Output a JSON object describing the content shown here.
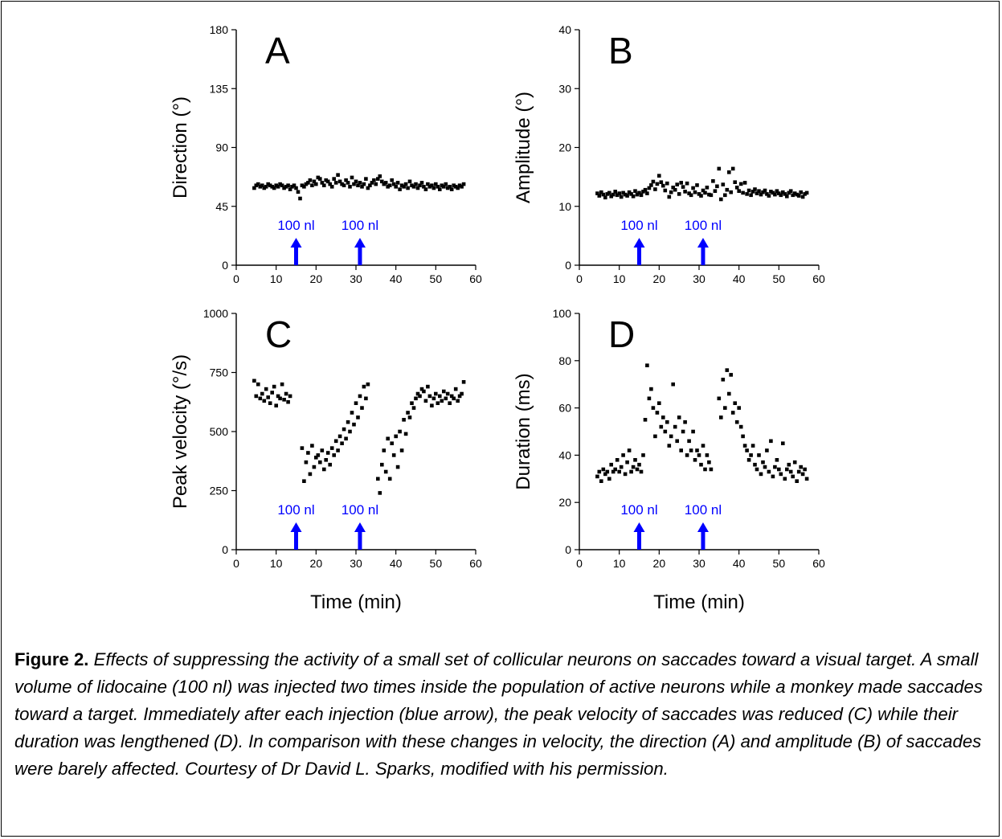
{
  "colors": {
    "data": "#000000",
    "arrow": "#0000ff",
    "axis": "#000000"
  },
  "shared_xlabel": "Time (min)",
  "caption": {
    "label": "Figure 2.",
    "text": "Effects of suppressing the activity of a small set of collicular neurons on saccades toward a visual target. A small volume of lidocaine (100 nl) was injected two times inside the population of active neurons while a monkey made saccades toward a target. Immediately after each injection (blue arrow), the peak velocity of saccades was reduced (C) while their duration was lengthened (D). In comparison with these changes in velocity, the direction (A) and amplitude (B) of saccades were barely affected. Courtesy of Dr David L. Sparks, modified with his permission."
  },
  "chart_data": [
    {
      "type": "scatter",
      "panel": "A",
      "ylabel": "Direction (°)",
      "xlim": [
        0,
        60
      ],
      "ylim": [
        0,
        180
      ],
      "xticks": [
        0,
        10,
        20,
        30,
        40,
        50,
        60
      ],
      "yticks": [
        0,
        45,
        90,
        135,
        180
      ],
      "annotations": [
        {
          "text": "100 nl",
          "x": 15,
          "kind": "arrow"
        },
        {
          "text": "100 nl",
          "x": 31,
          "kind": "arrow"
        }
      ],
      "x": [
        4.5,
        5,
        5.5,
        6,
        6.5,
        7,
        7.5,
        8,
        8.5,
        9,
        9.5,
        10,
        10.5,
        11,
        11.5,
        12,
        12.5,
        13,
        13.5,
        14,
        14.5,
        15,
        15.5,
        16,
        16.5,
        17,
        17.5,
        18,
        18.5,
        19,
        19.5,
        20,
        20.5,
        21,
        21.5,
        22,
        22.5,
        23,
        23.5,
        24,
        24.5,
        25,
        25.5,
        26,
        26.5,
        27,
        27.5,
        28,
        28.5,
        29,
        29.5,
        30,
        30.5,
        31,
        31.5,
        32,
        32.5,
        33,
        33.5,
        34,
        34.5,
        35,
        35.5,
        36,
        36.5,
        37,
        37.5,
        38,
        38.5,
        39,
        39.5,
        40,
        40.5,
        41,
        41.5,
        42,
        42.5,
        43,
        43.5,
        44,
        44.5,
        45,
        45.5,
        46,
        46.5,
        47,
        47.5,
        48,
        48.5,
        49,
        49.5,
        50,
        50.5,
        51,
        51.5,
        52,
        52.5,
        53,
        53.5,
        54,
        54.5,
        55,
        55.5,
        56,
        56.5,
        57
      ],
      "y": [
        59,
        61,
        62,
        60,
        61,
        59,
        60,
        62,
        61,
        60,
        59,
        61,
        60,
        62,
        61,
        59,
        60,
        61,
        58,
        60,
        61,
        59,
        56,
        51,
        61,
        60,
        62,
        63,
        65,
        61,
        64,
        62,
        67,
        66,
        63,
        61,
        65,
        64,
        62,
        60,
        66,
        63,
        69,
        64,
        62,
        61,
        65,
        63,
        60,
        67,
        62,
        64,
        61,
        63,
        60,
        62,
        66,
        59,
        61,
        63,
        65,
        62,
        66,
        68,
        64,
        62,
        63,
        60,
        61,
        65,
        62,
        60,
        63,
        58,
        61,
        60,
        62,
        59,
        64,
        61,
        60,
        62,
        59,
        61,
        63,
        60,
        58,
        62,
        60,
        61,
        59,
        62,
        60,
        58,
        61,
        60,
        62,
        59,
        60,
        58,
        61,
        60,
        59,
        61,
        60,
        62
      ]
    },
    {
      "type": "scatter",
      "panel": "B",
      "ylabel": "Amplitude (°)",
      "xlim": [
        0,
        60
      ],
      "ylim": [
        0,
        40
      ],
      "xticks": [
        0,
        10,
        20,
        30,
        40,
        50,
        60
      ],
      "yticks": [
        0,
        10,
        20,
        30,
        40
      ],
      "annotations": [
        {
          "text": "100 nl",
          "x": 15,
          "kind": "arrow"
        },
        {
          "text": "100 nl",
          "x": 31,
          "kind": "arrow"
        }
      ],
      "x": [
        4.5,
        5,
        5.5,
        6,
        6.5,
        7,
        7.5,
        8,
        8.5,
        9,
        9.5,
        10,
        10.5,
        11,
        11.5,
        12,
        12.5,
        13,
        13.5,
        14,
        14.5,
        15,
        15.5,
        16,
        16.5,
        17,
        17.5,
        18,
        18.5,
        19,
        19.5,
        20,
        20.5,
        21,
        21.5,
        22,
        22.5,
        23,
        23.5,
        24,
        24.5,
        25,
        25.5,
        26,
        26.5,
        27,
        27.5,
        28,
        28.5,
        29,
        29.5,
        30,
        30.5,
        31,
        31.5,
        32,
        32.5,
        33,
        33.5,
        34,
        34.5,
        35,
        35.5,
        36,
        36.5,
        37,
        37.5,
        38,
        38.5,
        39,
        39.5,
        40,
        40.5,
        41,
        41.5,
        42,
        42.5,
        43,
        43.5,
        44,
        44.5,
        45,
        45.5,
        46,
        46.5,
        47,
        47.5,
        48,
        48.5,
        49,
        49.5,
        50,
        50.5,
        51,
        51.5,
        52,
        52.5,
        53,
        53.5,
        54,
        54.5,
        55,
        55.5,
        56,
        56.5,
        57
      ],
      "y": [
        12.2,
        11.8,
        12.4,
        12,
        11.5,
        12.1,
        12.3,
        11.7,
        12,
        12.5,
        11.9,
        12.2,
        11.6,
        12.3,
        12,
        11.8,
        12.4,
        12.1,
        11.7,
        12.6,
        12,
        12.3,
        11.9,
        12.5,
        12.8,
        12.2,
        13.1,
        13.6,
        14.2,
        12.9,
        13.8,
        15.2,
        14.1,
        13.5,
        12.7,
        13.9,
        11.6,
        12.4,
        13.2,
        12.8,
        13.7,
        12.1,
        14,
        13.3,
        12.5,
        13.9,
        12.2,
        11.9,
        13.1,
        12.4,
        13.6,
        12.1,
        11.8,
        12.7,
        12.3,
        13.2,
        12,
        11.9,
        14.3,
        12.6,
        13.4,
        16.4,
        11.2,
        13.7,
        11.9,
        12.8,
        15.8,
        12.4,
        16.4,
        14.1,
        13.2,
        12.6,
        13.8,
        12.3,
        14,
        12.1,
        12.7,
        11.9,
        12.5,
        12.9,
        12.2,
        12.6,
        12,
        12.4,
        12.7,
        12.1,
        11.8,
        12.5,
        12.3,
        12,
        12.6,
        12.2,
        11.9,
        12.4,
        12.1,
        11.7,
        12.3,
        12.6,
        11.9,
        12.2,
        12,
        11.8,
        12.4,
        11.6,
        12.1,
        12.3
      ]
    },
    {
      "type": "scatter",
      "panel": "C",
      "ylabel": "Peak velocity (°/s)",
      "xlabel": "Time (min)",
      "xlim": [
        0,
        60
      ],
      "ylim": [
        0,
        1000
      ],
      "xticks": [
        0,
        10,
        20,
        30,
        40,
        50,
        60
      ],
      "yticks": [
        0,
        250,
        500,
        750,
        1000
      ],
      "annotations": [
        {
          "text": "100 nl",
          "x": 15,
          "kind": "arrow"
        },
        {
          "text": "100 nl",
          "x": 31,
          "kind": "arrow"
        }
      ],
      "x": [
        4.5,
        5,
        5.5,
        6,
        6.5,
        7,
        7.5,
        8,
        8.5,
        9,
        9.5,
        10,
        10.5,
        11,
        11.5,
        12,
        12.5,
        13,
        13.5,
        16.5,
        17,
        17.5,
        18,
        18.5,
        19,
        19.5,
        20,
        20.5,
        21,
        21.5,
        22,
        22.5,
        23,
        23.5,
        24,
        24.5,
        25,
        25.5,
        26,
        26.5,
        27,
        27.5,
        28,
        28.5,
        29,
        29.5,
        30,
        30.5,
        31,
        31.5,
        32,
        32.5,
        33,
        35.5,
        36,
        36.5,
        37,
        37.5,
        38,
        38.5,
        39,
        39.5,
        40,
        40.5,
        41,
        41.5,
        42,
        42.5,
        43,
        43.5,
        44,
        44.5,
        45,
        45.5,
        46,
        46.5,
        47,
        47.5,
        48,
        48.5,
        49,
        49.5,
        50,
        50.5,
        51,
        51.5,
        52,
        52.5,
        53,
        53.5,
        54,
        54.5,
        55,
        55.5,
        56,
        56.5,
        57
      ],
      "y": [
        715,
        650,
        700,
        640,
        660,
        630,
        680,
        645,
        620,
        665,
        690,
        610,
        650,
        640,
        700,
        635,
        660,
        625,
        650,
        430,
        290,
        370,
        410,
        320,
        440,
        350,
        390,
        400,
        370,
        420,
        340,
        380,
        410,
        360,
        430,
        400,
        460,
        420,
        480,
        450,
        510,
        470,
        540,
        500,
        580,
        530,
        620,
        560,
        650,
        600,
        690,
        640,
        700,
        300,
        240,
        360,
        420,
        330,
        470,
        300,
        450,
        400,
        480,
        350,
        500,
        420,
        550,
        490,
        580,
        560,
        620,
        600,
        640,
        660,
        650,
        680,
        670,
        630,
        690,
        650,
        610,
        640,
        660,
        620,
        650,
        630,
        670,
        640,
        660,
        620,
        650,
        640,
        680,
        630,
        650,
        660,
        710
      ]
    },
    {
      "type": "scatter",
      "panel": "D",
      "ylabel": "Duration (ms)",
      "xlabel": "Time (min)",
      "xlim": [
        0,
        60
      ],
      "ylim": [
        0,
        100
      ],
      "xticks": [
        0,
        10,
        20,
        30,
        40,
        50,
        60
      ],
      "yticks": [
        0,
        20,
        40,
        60,
        80,
        100
      ],
      "annotations": [
        {
          "text": "100 nl",
          "x": 15,
          "kind": "arrow"
        },
        {
          "text": "100 nl",
          "x": 31,
          "kind": "arrow"
        }
      ],
      "x": [
        4.5,
        5,
        5.5,
        6,
        6.5,
        7,
        7.5,
        8,
        8.5,
        9,
        9.5,
        10,
        10.5,
        11,
        11.5,
        12,
        12.5,
        13,
        13.5,
        14,
        14.5,
        15,
        15.5,
        16,
        16.5,
        17,
        17.5,
        18,
        18.5,
        19,
        19.5,
        20,
        20.5,
        21,
        21.5,
        22,
        22.5,
        23,
        23.5,
        24,
        24.5,
        25,
        25.5,
        26,
        26.5,
        27,
        27.5,
        28,
        28.5,
        29,
        29.5,
        30,
        30.5,
        31,
        31.5,
        32,
        32.5,
        33,
        35,
        35.5,
        36,
        36.5,
        37,
        37.5,
        38,
        38.5,
        39,
        39.5,
        40,
        40.5,
        41,
        41.5,
        42,
        42.5,
        43,
        43.5,
        44,
        44.5,
        45,
        45.5,
        46,
        46.5,
        47,
        47.5,
        48,
        48.5,
        49,
        49.5,
        50,
        50.5,
        51,
        51.5,
        52,
        52.5,
        53,
        53.5,
        54,
        54.5,
        55,
        55.5,
        56,
        56.5,
        57
      ],
      "y": [
        31,
        33,
        29,
        34,
        32,
        33,
        30,
        36,
        33,
        34,
        38,
        33,
        35,
        40,
        32,
        37,
        42,
        33,
        35,
        38,
        34,
        36,
        33,
        40,
        55,
        78,
        64,
        68,
        60,
        48,
        58,
        62,
        52,
        56,
        50,
        54,
        44,
        48,
        70,
        52,
        46,
        56,
        42,
        50,
        54,
        40,
        46,
        42,
        50,
        38,
        42,
        40,
        36,
        44,
        34,
        40,
        37,
        34,
        64,
        56,
        72,
        60,
        76,
        66,
        74,
        58,
        62,
        54,
        60,
        52,
        48,
        44,
        42,
        38,
        40,
        44,
        36,
        34,
        40,
        32,
        37,
        35,
        42,
        33,
        46,
        31,
        35,
        38,
        34,
        32,
        45,
        30,
        34,
        36,
        33,
        31,
        37,
        29,
        33,
        35,
        32,
        34,
        30
      ]
    }
  ]
}
